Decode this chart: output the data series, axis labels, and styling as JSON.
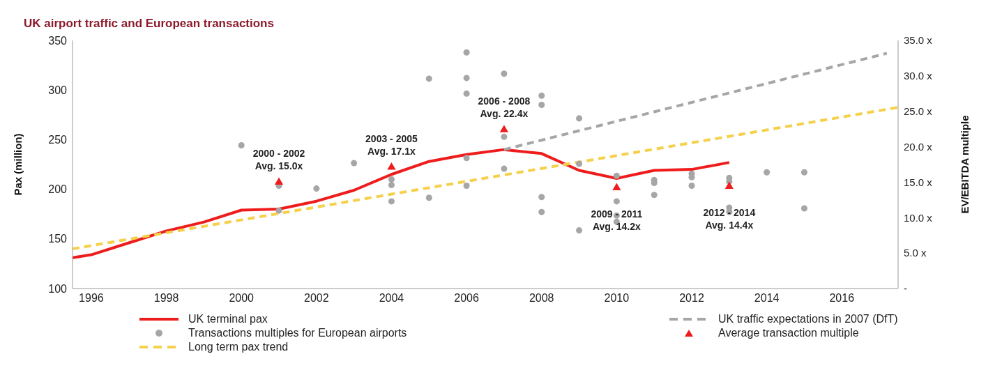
{
  "chart_data": {
    "type": "line",
    "title": "UK airport traffic and European transactions",
    "ylabel": "Pax (million)",
    "y2label": "EV/EBITDA  multiple",
    "xlim": [
      1995.5,
      2017.5
    ],
    "xticks": [
      1996,
      1998,
      2000,
      2002,
      2004,
      2006,
      2008,
      2010,
      2012,
      2014,
      2016
    ],
    "ylim": [
      100,
      350
    ],
    "yticks": [
      100,
      150,
      200,
      250,
      300,
      350
    ],
    "y2lim": [
      0,
      35
    ],
    "y2ticks": [
      {
        "value": 0,
        "label": "-"
      },
      {
        "value": 5,
        "label": "5.0 x"
      },
      {
        "value": 10,
        "label": "10.0 x"
      },
      {
        "value": 15,
        "label": "15.0 x"
      },
      {
        "value": 20,
        "label": "20.0 x"
      },
      {
        "value": 25,
        "label": "25.0 x"
      },
      {
        "value": 30,
        "label": "30.0 x"
      },
      {
        "value": 35,
        "label": "35.0 x"
      }
    ],
    "grid": false,
    "legend": "bottom",
    "series": [
      {
        "name": "UK terminal pax",
        "color": "#ee1c1c",
        "marker": "none",
        "line_style": "solid",
        "x": [
          1995.5,
          1996,
          1997,
          1998,
          1999,
          2000,
          2001,
          2002,
          2003,
          2004,
          2005,
          2006,
          2007,
          2008,
          2009,
          2010,
          2011,
          2012,
          2013
        ],
        "values": [
          131,
          134,
          146,
          158,
          167,
          179,
          180,
          188,
          199,
          215,
          228,
          235,
          240,
          236,
          219,
          211,
          219,
          220,
          227
        ]
      },
      {
        "name": "UK traffic expectations in 2007 (DfT)",
        "color": "#a6a6a6",
        "marker": "none",
        "line_style": "dashed",
        "x": [
          2007,
          2017.2
        ],
        "values": [
          240,
          337
        ]
      },
      {
        "type": "scatter",
        "name": "Transactions multiples for European airports",
        "color": "#a6a6a6",
        "marker": "circle",
        "axis": "y2",
        "x": [
          2000,
          2001,
          2001,
          2002,
          2003,
          2004,
          2004,
          2004,
          2005,
          2005,
          2006,
          2006,
          2006,
          2006,
          2006,
          2007,
          2007,
          2007,
          2008,
          2008,
          2008,
          2008,
          2009,
          2009,
          2009,
          2010,
          2010,
          2010,
          2010,
          2011,
          2011,
          2011,
          2012,
          2012,
          2012,
          2013,
          2013,
          2013,
          2013,
          2014,
          2015,
          2015
        ],
        "values": [
          20.2,
          11.0,
          14.5,
          14.1,
          17.7,
          15.4,
          14.6,
          12.3,
          29.6,
          12.8,
          33.3,
          29.7,
          27.5,
          18.4,
          14.5,
          30.3,
          21.4,
          16.9,
          27.2,
          25.9,
          12.9,
          10.8,
          24.0,
          17.6,
          8.2,
          15.9,
          12.3,
          10.3,
          9.4,
          15.3,
          14.9,
          13.2,
          16.2,
          15.7,
          14.5,
          15.6,
          15.1,
          11.4,
          10.8,
          16.4,
          16.4,
          11.3
        ]
      },
      {
        "type": "scatter",
        "name": "Average transaction multiple",
        "color": "#ee1c1c",
        "marker": "triangle",
        "axis": "y2",
        "x": [
          2001,
          2004,
          2007,
          2010,
          2013
        ],
        "values": [
          15.0,
          17.1,
          22.4,
          14.2,
          14.4
        ]
      },
      {
        "name": "Long term pax trend",
        "color": "#f5d04a",
        "marker": "none",
        "line_style": "dashed",
        "x": [
          1995.5,
          2017.5
        ],
        "values": [
          140,
          282.5
        ]
      }
    ],
    "annotations": [
      "2000 - 2002\nAvg. 15.0x",
      "2003 - 2005\nAvg. 17.1x",
      "2006 - 2008\nAvg. 22.4x",
      "2009 - 2011\nAvg. 14.2x",
      "2012 - 2014\nAvg. 14.4x"
    ]
  }
}
